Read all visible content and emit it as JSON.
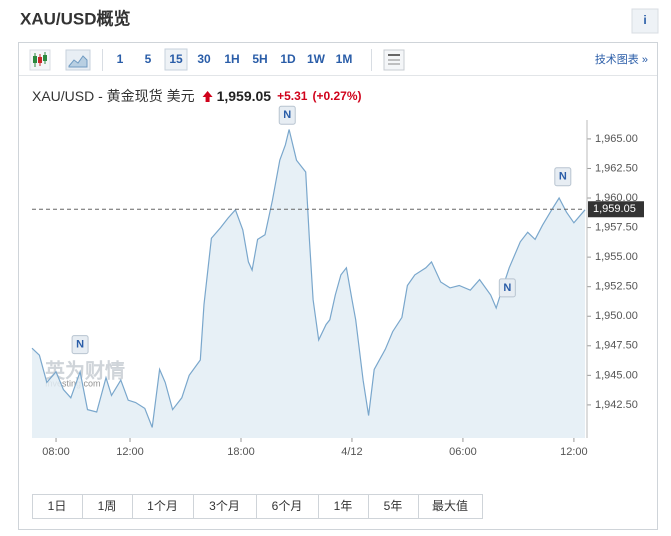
{
  "header": {
    "title": "XAU/USD概览",
    "info": "i"
  },
  "toolbar": {
    "intervals": [
      "1",
      "5",
      "15",
      "30",
      "1H",
      "5H",
      "1D",
      "1W",
      "1M"
    ],
    "active_index": 2,
    "link": "技术图表 »"
  },
  "quote": {
    "name": "XAU/USD - 黄金现货 美元",
    "price": "1,959.05",
    "change": "+5.31",
    "change_pct": "(+0.27%)"
  },
  "watermark": {
    "brand": "英为财情",
    "site": "Investing.com"
  },
  "chart_data": {
    "type": "area",
    "color": "#7aa7cc",
    "fill": "#e3edf5",
    "x": [
      6.7,
      7.1,
      7.5,
      8,
      8.4,
      8.8,
      9.3,
      9.7,
      10.2,
      10.7,
      11,
      11.5,
      11.9,
      12.3,
      12.8,
      13.2,
      13.6,
      13.9,
      14.3,
      14.8,
      15.2,
      15.8,
      16,
      16.4,
      16.9,
      17.3,
      17.7,
      18.1,
      18.4,
      18.6,
      18.9,
      19.3,
      19.7,
      20.1,
      20.4,
      20.6,
      21,
      21.5,
      21.7,
      21.9,
      22.2,
      22.6,
      22.8,
      23.1,
      23.4,
      23.7,
      24,
      24.2,
      24.6,
      24.9,
      25.2,
      25.8,
      26.2,
      26.7,
      27,
      27.4,
      28,
      28.3,
      28.8,
      29.3,
      29.8,
      30.4,
      30.9,
      31.5,
      31.8,
      32.1,
      32.5,
      33.1,
      33.5,
      33.9,
      34.3,
      34.8,
      35.2,
      35.6,
      36,
      36.6
    ],
    "values": [
      1947.3,
      1946.7,
      1944.4,
      1945.3,
      1943.8,
      1943.1,
      1945.3,
      1942.1,
      1941.9,
      1944.8,
      1943.3,
      1944.6,
      1942.9,
      1942.7,
      1942.2,
      1940.6,
      1945.5,
      1944.4,
      1942.1,
      1943.1,
      1945.0,
      1946.3,
      1951.0,
      1956.6,
      1957.5,
      1958.3,
      1959.0,
      1957.3,
      1954.6,
      1953.9,
      1956.5,
      1956.9,
      1959.8,
      1963.2,
      1964.5,
      1965.8,
      1963.2,
      1962.2,
      1956.5,
      1951.4,
      1948.0,
      1949.3,
      1949.7,
      1951.8,
      1953.5,
      1954.1,
      1951.4,
      1949.7,
      1944.6,
      1941.6,
      1945.5,
      1947.2,
      1948.7,
      1949.9,
      1952.6,
      1953.5,
      1954.1,
      1954.6,
      1952.9,
      1952.4,
      1952.6,
      1952.2,
      1953.1,
      1951.8,
      1950.7,
      1952.2,
      1954.1,
      1956.3,
      1957.1,
      1956.5,
      1957.7,
      1959.0,
      1960.0,
      1958.8,
      1957.9,
      1959.0
    ],
    "xlim": [
      6.7,
      36.6
    ],
    "xticks": [
      {
        "value": 8,
        "label": "08:00"
      },
      {
        "value": 12,
        "label": "12:00"
      },
      {
        "value": 18,
        "label": "18:00"
      },
      {
        "value": 24,
        "label": "4/12"
      },
      {
        "value": 30,
        "label": "06:00"
      },
      {
        "value": 36,
        "label": "12:00"
      }
    ],
    "ylim": [
      1939.7,
      1966.6
    ],
    "yticks": [
      {
        "value": 1942.5,
        "label": "1,942.50"
      },
      {
        "value": 1945,
        "label": "1,945.00"
      },
      {
        "value": 1947.5,
        "label": "1,947.50"
      },
      {
        "value": 1950,
        "label": "1,950.00"
      },
      {
        "value": 1952.5,
        "label": "1,952.50"
      },
      {
        "value": 1955,
        "label": "1,955.00"
      },
      {
        "value": 1957.5,
        "label": "1,957.50"
      },
      {
        "value": 1960,
        "label": "1,960.00"
      },
      {
        "value": 1962.5,
        "label": "1,962.50"
      },
      {
        "value": 1965,
        "label": "1,965.00"
      }
    ],
    "current": {
      "value": 1959.05,
      "label": "1,959.05"
    },
    "news": [
      {
        "x": 9.3,
        "value": 1947.6,
        "label": "N"
      },
      {
        "x": 20.5,
        "value": 1967.0,
        "label": "N"
      },
      {
        "x": 32.4,
        "value": 1952.4,
        "label": "N"
      },
      {
        "x": 35.4,
        "value": 1961.8,
        "label": "N"
      }
    ]
  },
  "ranges": [
    "1日",
    "1周",
    "1个月",
    "3个月",
    "6个月",
    "1年",
    "5年",
    "最大值"
  ]
}
